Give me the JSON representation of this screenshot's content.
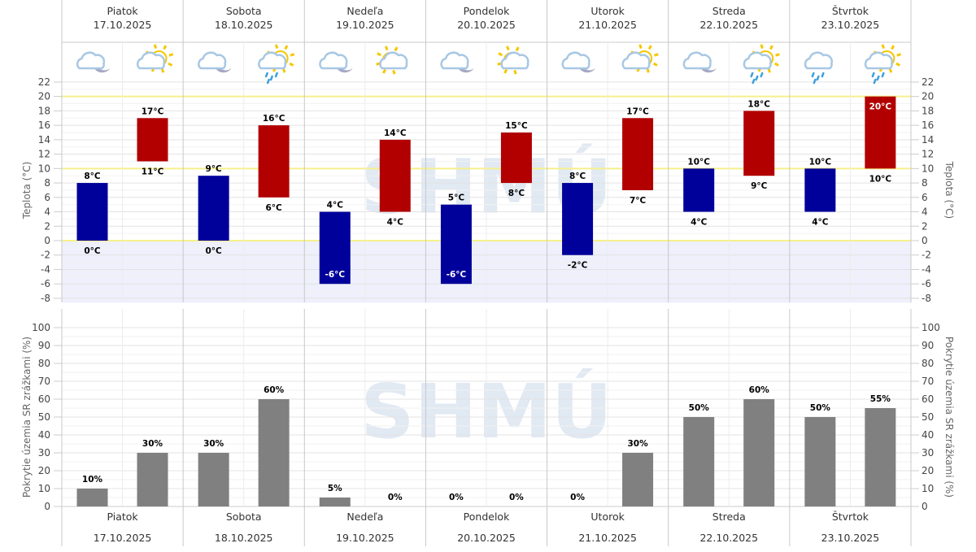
{
  "logo_text": "SHMÚ",
  "colors": {
    "night": "#00009b",
    "day": "#b20000",
    "precip": "#808080",
    "highlight_line": "#f5f08a",
    "negative_bg": "#eef0fb"
  },
  "days": [
    {
      "name": "Piatok",
      "date": "17.10.2025",
      "icons": [
        "cloud-moon-icon",
        "cloud-sun-icon"
      ]
    },
    {
      "name": "Sobota",
      "date": "18.10.2025",
      "icons": [
        "cloud-moon-icon",
        "cloud-sun-rain-icon"
      ]
    },
    {
      "name": "Nedeľa",
      "date": "19.10.2025",
      "icons": [
        "cloud-moon-icon",
        "sun-cloud-icon"
      ]
    },
    {
      "name": "Pondelok",
      "date": "20.10.2025",
      "icons": [
        "cloud-moon-icon",
        "sun-cloud-icon"
      ]
    },
    {
      "name": "Utorok",
      "date": "21.10.2025",
      "icons": [
        "cloud-moon-icon",
        "cloud-sun-icon"
      ]
    },
    {
      "name": "Streda",
      "date": "22.10.2025",
      "icons": [
        "cloud-moon-icon",
        "cloud-sun-rain-icon"
      ]
    },
    {
      "name": "Štvrtok",
      "date": "23.10.2025",
      "icons": [
        "cloud-rain-icon",
        "cloud-sun-rain-icon"
      ]
    }
  ],
  "chart_data": [
    {
      "type": "bar",
      "subtype": "floating-range",
      "ylabel": "Teplota (°C)",
      "ylabel_right": "Teplota (°C)",
      "ylim": [
        -8,
        22
      ],
      "yticks": [
        22,
        20,
        18,
        16,
        14,
        12,
        10,
        8,
        6,
        4,
        2,
        0,
        -2,
        -4,
        -6,
        -8
      ],
      "highlight_lines": [
        0,
        10,
        20
      ],
      "unit": "°C",
      "series": [
        {
          "period": "night",
          "min": [
            0,
            0,
            -6,
            -6,
            -2,
            4,
            4
          ],
          "max": [
            8,
            9,
            4,
            5,
            8,
            10,
            10
          ]
        },
        {
          "period": "day",
          "min": [
            11,
            6,
            4,
            8,
            7,
            9,
            10
          ],
          "max": [
            17,
            16,
            14,
            15,
            17,
            18,
            20
          ]
        }
      ]
    },
    {
      "type": "bar",
      "ylabel": "Pokrytie územia SR zrážkami (%)",
      "ylabel_right": "Pokrytie územia SR zrážkami (%)",
      "ylim": [
        0,
        100
      ],
      "yticks": [
        100,
        90,
        80,
        70,
        60,
        50,
        40,
        30,
        20,
        10,
        0
      ],
      "unit": "%",
      "series": [
        {
          "period": "night",
          "values": [
            10,
            30,
            5,
            0,
            0,
            50,
            50
          ]
        },
        {
          "period": "day",
          "values": [
            30,
            60,
            0,
            0,
            30,
            60,
            55
          ]
        }
      ]
    }
  ]
}
